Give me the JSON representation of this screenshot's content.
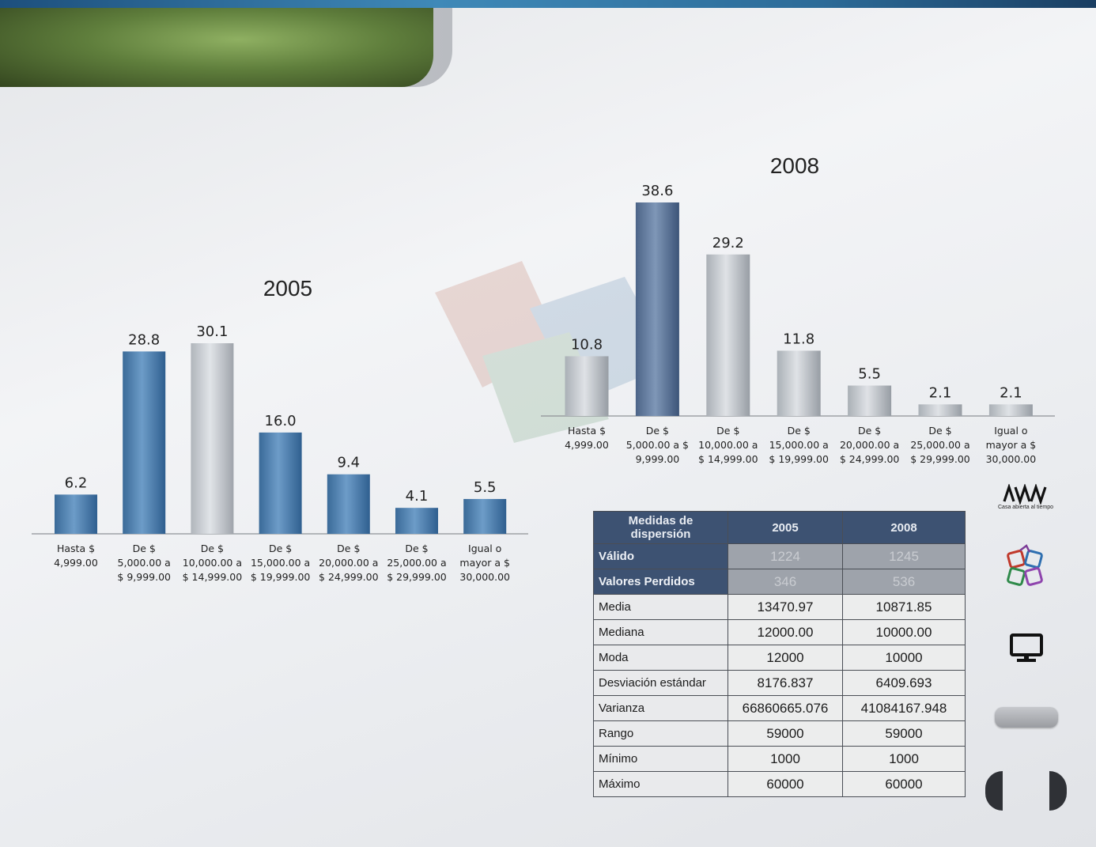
{
  "chart_data": [
    {
      "type": "bar",
      "title": "2005",
      "categories": [
        [
          "Hasta $",
          "4,999.00"
        ],
        [
          "De $",
          "5,000.00 a",
          "$ 9,999.00"
        ],
        [
          "De $",
          "10,000.00 a",
          "$ 14,999.00"
        ],
        [
          "De $",
          "15,000.00 a",
          "$ 19,999.00"
        ],
        [
          "De $",
          "20,000.00 a",
          "$ 24,999.00"
        ],
        [
          "De $",
          "25,000.00 a",
          "$ 29,999.00"
        ],
        [
          "Igual o",
          "mayor a $",
          "30,000.00"
        ]
      ],
      "values": [
        6.2,
        28.8,
        30.1,
        16.0,
        9.4,
        4.1,
        5.5
      ],
      "value_labels": [
        "6.2",
        "28.8",
        "30.1",
        "16.0",
        "9.4",
        "4.1",
        "5.5"
      ],
      "highlight_index": 2,
      "ylim": [
        0,
        30.1
      ]
    },
    {
      "type": "bar",
      "title": "2008",
      "categories": [
        [
          "Hasta $",
          "4,999.00"
        ],
        [
          "De $",
          "5,000.00 a $",
          "9,999.00"
        ],
        [
          "De $",
          "10,000.00 a",
          "$ 14,999.00"
        ],
        [
          "De $",
          "15,000.00 a",
          "$ 19,999.00"
        ],
        [
          "De $",
          "20,000.00 a",
          "$ 24,999.00"
        ],
        [
          "De $",
          "25,000.00 a",
          "$ 29,999.00"
        ],
        [
          "Igual o",
          "mayor a $",
          "30,000.00"
        ]
      ],
      "values": [
        10.8,
        38.6,
        29.2,
        11.8,
        5.5,
        2.1,
        2.1
      ],
      "value_labels": [
        "10.8",
        "38.6",
        "29.2",
        "11.8",
        "5.5",
        "2.1",
        "2.1"
      ],
      "highlight_index": 1,
      "ylim": [
        0,
        38.6
      ]
    }
  ],
  "colors": {
    "bar_2005": "#3d6d9c",
    "bar_2005_highlight": "#b9bdc3",
    "bar_2008": "#b3b8be",
    "bar_2008_highlight": "#4a6285",
    "table_header": "#3d5272"
  },
  "table": {
    "header": [
      "Medidas de dispersión",
      "2005",
      "2008"
    ],
    "rows": [
      {
        "label": "Válido",
        "v2005": "1224",
        "v2008": "1245",
        "highlight": true
      },
      {
        "label": "Valores Perdidos",
        "v2005": "346",
        "v2008": "536",
        "highlight": true
      },
      {
        "label": "Media",
        "v2005": "13470.97",
        "v2008": "10871.85"
      },
      {
        "label": "Mediana",
        "v2005": "12000.00",
        "v2008": "10000.00"
      },
      {
        "label": "Moda",
        "v2005": "12000",
        "v2008": "10000"
      },
      {
        "label": "Desviación estándar",
        "v2005": "8176.837",
        "v2008": "6409.693"
      },
      {
        "label": "Varianza",
        "v2005": "66860665.076",
        "v2008": "41084167.948"
      },
      {
        "label": "Rango",
        "v2005": "59000",
        "v2008": "59000"
      },
      {
        "label": "Mínimo",
        "v2005": "1000",
        "v2008": "1000"
      },
      {
        "label": "Máximo",
        "v2005": "60000",
        "v2008": "60000"
      }
    ]
  },
  "sidebar": {
    "logo_text": "Casa abierta al tiempo",
    "icons": [
      "uam-logo-icon",
      "colored-blocks-logo-icon",
      "monitor-icon",
      "prev-arrow-icon",
      "next-arrow-icon"
    ]
  }
}
